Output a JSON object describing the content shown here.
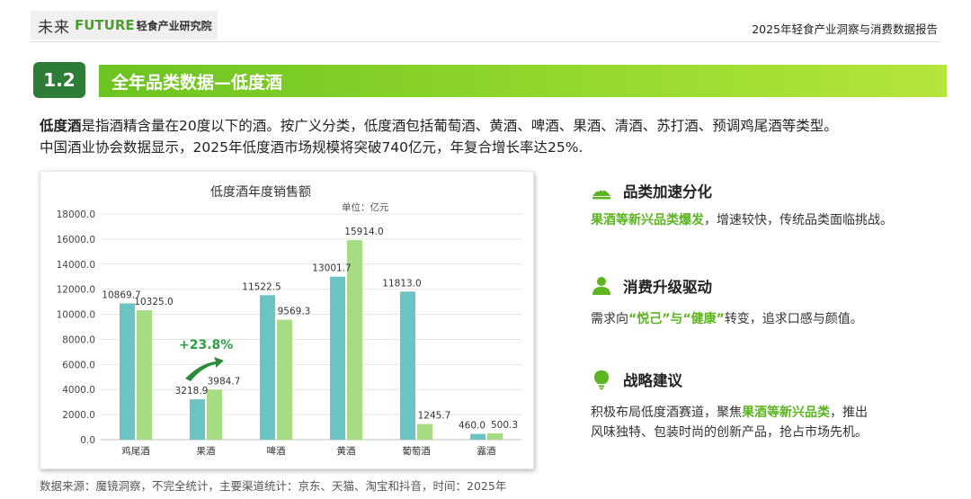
{
  "header": {
    "logo_cn": "未来",
    "logo_en": "FUTURE",
    "logo_sub": "轻食产业研究院",
    "report_title": "2025年轻食产业洞察与消费数据报告"
  },
  "section": {
    "number": "1.2",
    "title": "全年品类数据—低度酒"
  },
  "intro": {
    "term": "低度酒",
    "line1_rest": "是指酒精含量在20度以下的酒。按广义分类，低度酒包括葡萄酒、黄酒、啤酒、果酒、清酒、苏打酒、预调鸡尾酒等类型。",
    "line2": "中国酒业协会数据显示，2025年低度酒市场规模将突破740亿元，年复合增长率达25%."
  },
  "chart_data": {
    "type": "bar",
    "title": "低度酒年度销售额",
    "unit": "单位：亿元",
    "categories": [
      "鸡尾酒",
      "果酒",
      "啤酒",
      "黄酒",
      "葡萄酒",
      "露酒"
    ],
    "series": [
      {
        "values": [
          10869.7,
          3218.9,
          11522.5,
          13001.7,
          11813.0,
          460.0
        ],
        "color": "#6cc3c3"
      },
      {
        "values": [
          10325.0,
          3984.7,
          9569.3,
          15914.0,
          1245.7,
          500.3
        ],
        "color": "#a8dc84"
      }
    ],
    "ylim": [
      0,
      18000
    ],
    "yticks": [
      "0.0",
      "2000.0",
      "4000.0",
      "6000.0",
      "8000.0",
      "10000.0",
      "12000.0",
      "14000.0",
      "16000.0",
      "18000.0"
    ],
    "annotation": "+23.8%",
    "grid": true
  },
  "source": "数据来源：魔镜洞察，不完全统计，主要渠道统计：京东、天猫、淘宝和抖音，时间：2025年",
  "right": {
    "item1": {
      "icon": "growth-hill-icon",
      "title": "品类加速分化",
      "hl": "果酒等新兴品类爆发",
      "rest": "，增速较快，传统品类面临挑战。"
    },
    "item2": {
      "icon": "person-icon",
      "title": "消费升级驱动",
      "p1": "需求向",
      "hl1": "“悦己”",
      "p2": "与",
      "hl2": "“健康”",
      "p3": "转变，追求口感与颜值。"
    },
    "item3": {
      "icon": "lightbulb-icon",
      "title": "战略建议",
      "p1": "积极布局低度酒赛道，聚焦",
      "hl": "果酒等新兴品类",
      "p2": "，推出",
      "line2": "风味独特、包装时尚的创新产品，抢占市场先机。"
    }
  },
  "colors": {
    "accent": "#5cb421",
    "section_dark": "#2d7d37",
    "bar_blue": "#6cc3c3",
    "bar_green": "#a8dc84"
  }
}
